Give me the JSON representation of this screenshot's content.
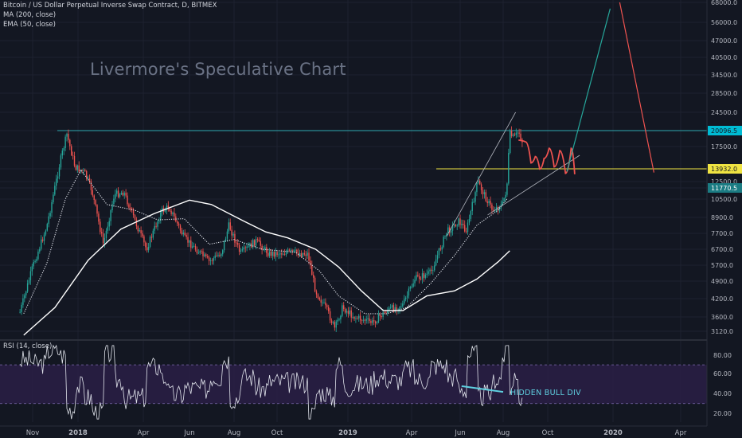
{
  "header": {
    "symbol": "Bitcoin / US Dollar Perpetual Inverse Swap Contract, D, BITMEX",
    "ma": "MA (200, close)",
    "ema": "EMA (50, close)",
    "rsi": "RSI (14, close)"
  },
  "watermark": "Livermore's Speculative Chart",
  "annotation": "HIDDEN BULL DIV",
  "colors": {
    "background": "#131722",
    "up": "#26a69a",
    "down": "#ef5350",
    "horizontal_line": "#2fa8b0",
    "support_line": "#f0e442",
    "projection_up": "#26a69a",
    "projection_down": "#ef5350",
    "rsi_band": "#2a1f45",
    "price_tag_top": "#00bcd4",
    "price_tag_mid": "#f0e442",
    "price_tag_low": "#1b7c83"
  },
  "chart_data": {
    "type": "candlestick",
    "price_axis": {
      "scale": "log",
      "ticks": [
        "68000.0",
        "56000.0",
        "47000.0",
        "40500.0",
        "34500.0",
        "28500.0",
        "24500.0",
        "20096.5",
        "17500.0",
        "13932.0",
        "12500.0",
        "11770.5",
        "10500.0",
        "8900.0",
        "7700.0",
        "6700.0",
        "5700.0",
        "4900.0",
        "4200.0",
        "3600.0",
        "3120.0"
      ]
    },
    "time_axis": {
      "ticks": [
        "Nov",
        "2018",
        "Apr",
        "Jun",
        "Aug",
        "Oct",
        "2019",
        "Apr",
        "Jun",
        "Aug",
        "Oct",
        "2020",
        "Apr"
      ]
    },
    "price_tags": [
      {
        "label": "20096.5",
        "value": 20096.5,
        "role": "top"
      },
      {
        "label": "13932.0",
        "value": 13932.0,
        "role": "mid"
      },
      {
        "label": "11770.5",
        "value": 11770.5,
        "role": "low"
      }
    ],
    "horizontal_lines": [
      {
        "value": 20096.5,
        "color": "#2fa8b0"
      },
      {
        "value": 13932.0,
        "color": "#f0e442"
      }
    ],
    "close_path": [
      {
        "date": "2017-10-15",
        "close": 3750
      },
      {
        "date": "2017-11-01",
        "close": 5600
      },
      {
        "date": "2017-11-20",
        "close": 8200
      },
      {
        "date": "2017-12-08",
        "close": 15000
      },
      {
        "date": "2017-12-17",
        "close": 19500
      },
      {
        "date": "2017-12-28",
        "close": 14200
      },
      {
        "date": "2018-01-10",
        "close": 13500
      },
      {
        "date": "2018-01-20",
        "close": 11500
      },
      {
        "date": "2018-02-05",
        "close": 7000
      },
      {
        "date": "2018-02-20",
        "close": 11000
      },
      {
        "date": "2018-03-05",
        "close": 11300
      },
      {
        "date": "2018-03-20",
        "close": 8700
      },
      {
        "date": "2018-04-05",
        "close": 6700
      },
      {
        "date": "2018-04-25",
        "close": 9400
      },
      {
        "date": "2018-05-05",
        "close": 9800
      },
      {
        "date": "2018-05-25",
        "close": 7400
      },
      {
        "date": "2018-06-10",
        "close": 6700
      },
      {
        "date": "2018-06-28",
        "close": 5900
      },
      {
        "date": "2018-07-15",
        "close": 6500
      },
      {
        "date": "2018-07-25",
        "close": 8300
      },
      {
        "date": "2018-08-10",
        "close": 6400
      },
      {
        "date": "2018-09-01",
        "close": 7200
      },
      {
        "date": "2018-09-20",
        "close": 6400
      },
      {
        "date": "2018-10-15",
        "close": 6500
      },
      {
        "date": "2018-11-10",
        "close": 6400
      },
      {
        "date": "2018-11-20",
        "close": 4500
      },
      {
        "date": "2018-12-05",
        "close": 3800
      },
      {
        "date": "2018-12-15",
        "close": 3200
      },
      {
        "date": "2018-12-25",
        "close": 3900
      },
      {
        "date": "2019-01-10",
        "close": 3600
      },
      {
        "date": "2019-02-05",
        "close": 3400
      },
      {
        "date": "2019-02-25",
        "close": 3800
      },
      {
        "date": "2019-03-20",
        "close": 4000
      },
      {
        "date": "2019-04-05",
        "close": 5000
      },
      {
        "date": "2019-04-25",
        "close": 5300
      },
      {
        "date": "2019-05-15",
        "close": 7800
      },
      {
        "date": "2019-05-30",
        "close": 8600
      },
      {
        "date": "2019-06-10",
        "close": 7900
      },
      {
        "date": "2019-06-26",
        "close": 12500
      },
      {
        "date": "2019-07-05",
        "close": 11000
      },
      {
        "date": "2019-07-17",
        "close": 9500
      },
      {
        "date": "2019-07-31",
        "close": 10000
      },
      {
        "date": "2019-08-06",
        "close": 11800
      },
      {
        "date": "2019-08-10",
        "close": 19500
      },
      {
        "date": "2019-08-16",
        "close": 18800
      },
      {
        "date": "2019-08-22",
        "close": 20000
      },
      {
        "date": "2019-08-28",
        "close": 18000
      }
    ],
    "ma200": [
      {
        "date": "2017-10-20",
        "value": 3000
      },
      {
        "date": "2017-12-01",
        "value": 3900
      },
      {
        "date": "2018-01-15",
        "value": 6000
      },
      {
        "date": "2018-03-01",
        "value": 8000
      },
      {
        "date": "2018-04-15",
        "value": 9200
      },
      {
        "date": "2018-06-01",
        "value": 10400
      },
      {
        "date": "2018-07-01",
        "value": 10000
      },
      {
        "date": "2018-08-15",
        "value": 8600
      },
      {
        "date": "2018-09-15",
        "value": 7800
      },
      {
        "date": "2018-10-15",
        "value": 7400
      },
      {
        "date": "2018-11-20",
        "value": 6700
      },
      {
        "date": "2018-12-20",
        "value": 5600
      },
      {
        "date": "2019-01-20",
        "value": 4500
      },
      {
        "date": "2019-02-20",
        "value": 3800
      },
      {
        "date": "2019-03-20",
        "value": 3800
      },
      {
        "date": "2019-04-20",
        "value": 4300
      },
      {
        "date": "2019-05-25",
        "value": 4500
      },
      {
        "date": "2019-06-25",
        "value": 5000
      },
      {
        "date": "2019-07-25",
        "value": 5900
      },
      {
        "date": "2019-08-10",
        "value": 6600
      }
    ],
    "ema50": [
      {
        "date": "2017-10-20",
        "value": 3700
      },
      {
        "date": "2017-11-20",
        "value": 5800
      },
      {
        "date": "2017-12-15",
        "value": 10500
      },
      {
        "date": "2018-01-05",
        "value": 13800
      },
      {
        "date": "2018-02-10",
        "value": 10000
      },
      {
        "date": "2018-03-20",
        "value": 9500
      },
      {
        "date": "2018-04-20",
        "value": 8700
      },
      {
        "date": "2018-05-25",
        "value": 8800
      },
      {
        "date": "2018-06-28",
        "value": 7000
      },
      {
        "date": "2018-08-01",
        "value": 7300
      },
      {
        "date": "2018-09-10",
        "value": 6700
      },
      {
        "date": "2018-10-25",
        "value": 6500
      },
      {
        "date": "2018-11-25",
        "value": 5400
      },
      {
        "date": "2018-12-20",
        "value": 4300
      },
      {
        "date": "2019-01-25",
        "value": 3700
      },
      {
        "date": "2019-02-25",
        "value": 3700
      },
      {
        "date": "2019-03-25",
        "value": 3900
      },
      {
        "date": "2019-04-25",
        "value": 4800
      },
      {
        "date": "2019-05-25",
        "value": 6300
      },
      {
        "date": "2019-06-25",
        "value": 8300
      },
      {
        "date": "2019-07-25",
        "value": 9500
      },
      {
        "date": "2019-08-06",
        "value": 10500
      }
    ],
    "trend_lines": [
      {
        "from": {
          "date": "2019-05-15",
          "value": 7500
        },
        "to": {
          "date": "2019-08-18",
          "value": 24500
        }
      },
      {
        "from": {
          "date": "2019-07-10",
          "value": 9100
        },
        "to": {
          "date": "2019-11-15",
          "value": 16000
        }
      }
    ],
    "projection": {
      "wave": [
        {
          "date": "2019-08-22",
          "value": 18500
        },
        {
          "date": "2019-09-01",
          "value": 18200
        },
        {
          "date": "2019-09-08",
          "value": 14800
        },
        {
          "date": "2019-09-14",
          "value": 15800
        },
        {
          "date": "2019-09-20",
          "value": 13900
        },
        {
          "date": "2019-09-26",
          "value": 15500
        },
        {
          "date": "2019-10-03",
          "value": 17200
        },
        {
          "date": "2019-10-10",
          "value": 14200
        },
        {
          "date": "2019-10-18",
          "value": 16800
        },
        {
          "date": "2019-10-26",
          "value": 13400
        },
        {
          "date": "2019-11-03",
          "value": 17200
        },
        {
          "date": "2019-11-08",
          "value": 13300
        }
      ],
      "up": [
        {
          "date": "2019-10-28",
          "value": 13600
        },
        {
          "date": "2019-12-28",
          "value": 64000
        }
      ],
      "down": [
        {
          "date": "2020-01-10",
          "value": 68000
        },
        {
          "date": "2020-02-25",
          "value": 13500
        }
      ]
    },
    "rsi": {
      "ticks": [
        "80.00",
        "60.00",
        "40.00",
        "20.00"
      ],
      "upper_band": 70,
      "lower_band": 30,
      "divergence": {
        "from": {
          "date": "2019-06-03",
          "value": 48
        },
        "to": {
          "date": "2019-08-01",
          "value": 42
        }
      }
    }
  }
}
